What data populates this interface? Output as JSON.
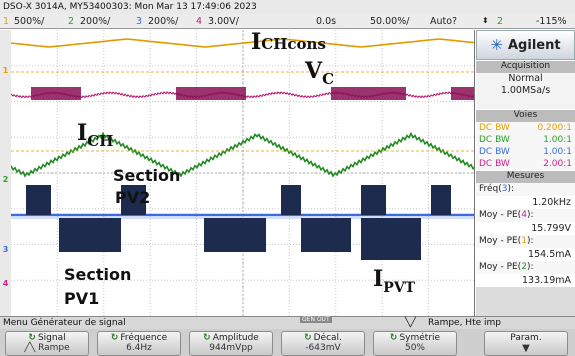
{
  "header": {
    "device_info": "DSO-X 3014A, MY53400303: Mon Mar 13 17:49:06 2023"
  },
  "channel_bar": {
    "ch1": {
      "num": "1",
      "scale": "500%/",
      "color": "#e6a000"
    },
    "ch2": {
      "num": "2",
      "scale": "200%/",
      "color": "#2aa12a"
    },
    "ch3": {
      "num": "3",
      "scale": "200%/",
      "color": "#3a6ee0"
    },
    "ch4": {
      "num": "4",
      "scale": "3.00V/",
      "color": "#d02090"
    },
    "delay": "0.0s",
    "timebase": "50.00%/",
    "trigger_mode": "Auto?",
    "trigger_source": "2",
    "trigger_level": "-115%"
  },
  "annotations": {
    "i_chcons_main": "I",
    "i_chcons_sub": "CHcons",
    "vc_main": "V",
    "vc_sub": "C",
    "ich_main": "I",
    "ich_sub": "CH",
    "section_pv2_line1": "Section",
    "section_pv2_line2": "PV2",
    "section_pv1_line1": "Section",
    "section_pv1_line2": "PV1",
    "ipvt_main": "I",
    "ipvt_sub": "PVT"
  },
  "side_panel": {
    "brand": "Agilent",
    "acq_title": "Acquisition",
    "acq_mode": "Normal",
    "acq_rate": "1.00MSa/s",
    "voies_title": "Voies",
    "voies": [
      {
        "coupling": "DC BW",
        "value": "0.200:1",
        "color": "#e6a000"
      },
      {
        "coupling": "DC BW",
        "value": "1.00:1",
        "color": "#2aa12a"
      },
      {
        "coupling": "DC BW",
        "value": "1.00:1",
        "color": "#3a6ee0"
      },
      {
        "coupling": "DC BW",
        "value": "2.00:1",
        "color": "#d02090"
      }
    ],
    "mesures_title": "Mesures",
    "measurements": [
      {
        "label_pre": "Fréq(",
        "ch": "3",
        "label_post": "):",
        "value": "1.20kHz",
        "ch_color": "#3a6ee0"
      },
      {
        "label_pre": "Moy - PE(",
        "ch": "4",
        "label_post": "):",
        "value": "15.799V",
        "ch_color": "#d02090"
      },
      {
        "label_pre": "Moy - PE(",
        "ch": "1",
        "label_post": "):",
        "value": "154.5mA",
        "ch_color": "#e6a000"
      },
      {
        "label_pre": "Moy - PE(",
        "ch": "2",
        "label_post": "):",
        "value": "133.19mA",
        "ch_color": "#2aa12a"
      }
    ]
  },
  "menu": {
    "title": "Menu Générateur de signal",
    "gen_label": "GEN OUT",
    "right_info": "Rampe, Hte imp",
    "softkeys": [
      {
        "label": "Signal",
        "value": "Rampe"
      },
      {
        "label": "Fréquence",
        "value": "6.4Hz"
      },
      {
        "label": "Amplitude",
        "value": "944mVpp"
      },
      {
        "label": "Décal.",
        "value": "-643mV"
      },
      {
        "label": "Symétrie",
        "value": "50%"
      },
      {
        "label": "Param.",
        "value": ""
      }
    ]
  }
}
